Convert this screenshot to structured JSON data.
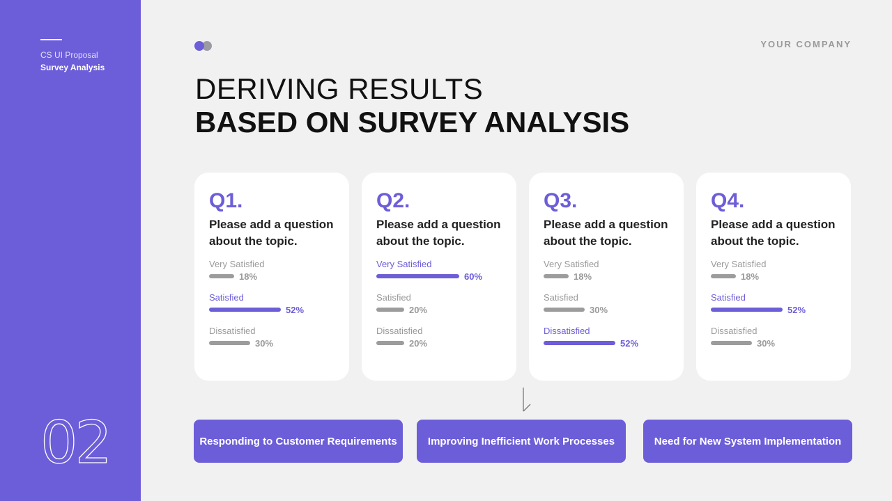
{
  "sidebar": {
    "subtitle": "CS UI Proposal",
    "section": "Survey Analysis",
    "page_number": "02"
  },
  "header": {
    "company": "YOUR COMPANY",
    "title_line1": "DERIVING RESULTS",
    "title_line2": "BASED ON SURVEY ANALYSIS"
  },
  "colors": {
    "accent": "#6c5dd8",
    "muted_bar": "#9c9c9c",
    "background": "#f2f1f1",
    "card": "#ffffff"
  },
  "cards": [
    {
      "label": "Q1.",
      "question": "Please add a question about the topic.",
      "options": [
        {
          "label": "Very Satisfied",
          "value": "18%",
          "highlight": false
        },
        {
          "label": "Satisfied",
          "value": "52%",
          "highlight": true
        },
        {
          "label": "Dissatisfied",
          "value": "30%",
          "highlight": false
        }
      ]
    },
    {
      "label": "Q2.",
      "question": "Please add a question about the topic.",
      "options": [
        {
          "label": "Very Satisfied",
          "value": "60%",
          "highlight": true
        },
        {
          "label": "Satisfied",
          "value": "20%",
          "highlight": false
        },
        {
          "label": "Dissatisfied",
          "value": "20%",
          "highlight": false
        }
      ]
    },
    {
      "label": "Q3.",
      "question": "Please add a question about the topic.",
      "options": [
        {
          "label": "Very Satisfied",
          "value": "18%",
          "highlight": false
        },
        {
          "label": "Satisfied",
          "value": "30%",
          "highlight": false
        },
        {
          "label": "Dissatisfied",
          "value": "52%",
          "highlight": true
        }
      ]
    },
    {
      "label": "Q4.",
      "question": "Please add a question about the topic.",
      "options": [
        {
          "label": "Very Satisfied",
          "value": "18%",
          "highlight": false
        },
        {
          "label": "Satisfied",
          "value": "52%",
          "highlight": true
        },
        {
          "label": "Dissatisfied",
          "value": "30%",
          "highlight": false
        }
      ]
    }
  ],
  "results": [
    "Responding to Customer Requirements",
    "Improving Inefficient Work Processes",
    "Need for New System Implementation"
  ]
}
